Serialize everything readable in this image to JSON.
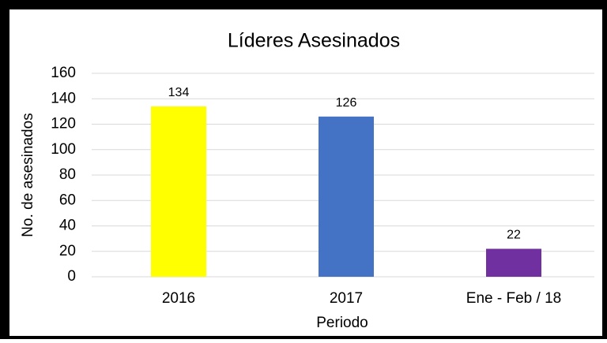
{
  "chart_data": {
    "type": "bar",
    "title": "Líderes Asesinados",
    "categories": [
      "2016",
      "2017",
      "Ene - Feb / 18"
    ],
    "values": [
      134,
      126,
      22
    ],
    "colors": [
      "#ffff00",
      "#4472c4",
      "#7030a0"
    ],
    "xlabel": "Periodo",
    "ylabel": "No. de asesinados",
    "ylim": [
      0,
      160
    ],
    "yticks": [
      0,
      20,
      40,
      60,
      80,
      100,
      120,
      140,
      160
    ],
    "grid": true
  }
}
